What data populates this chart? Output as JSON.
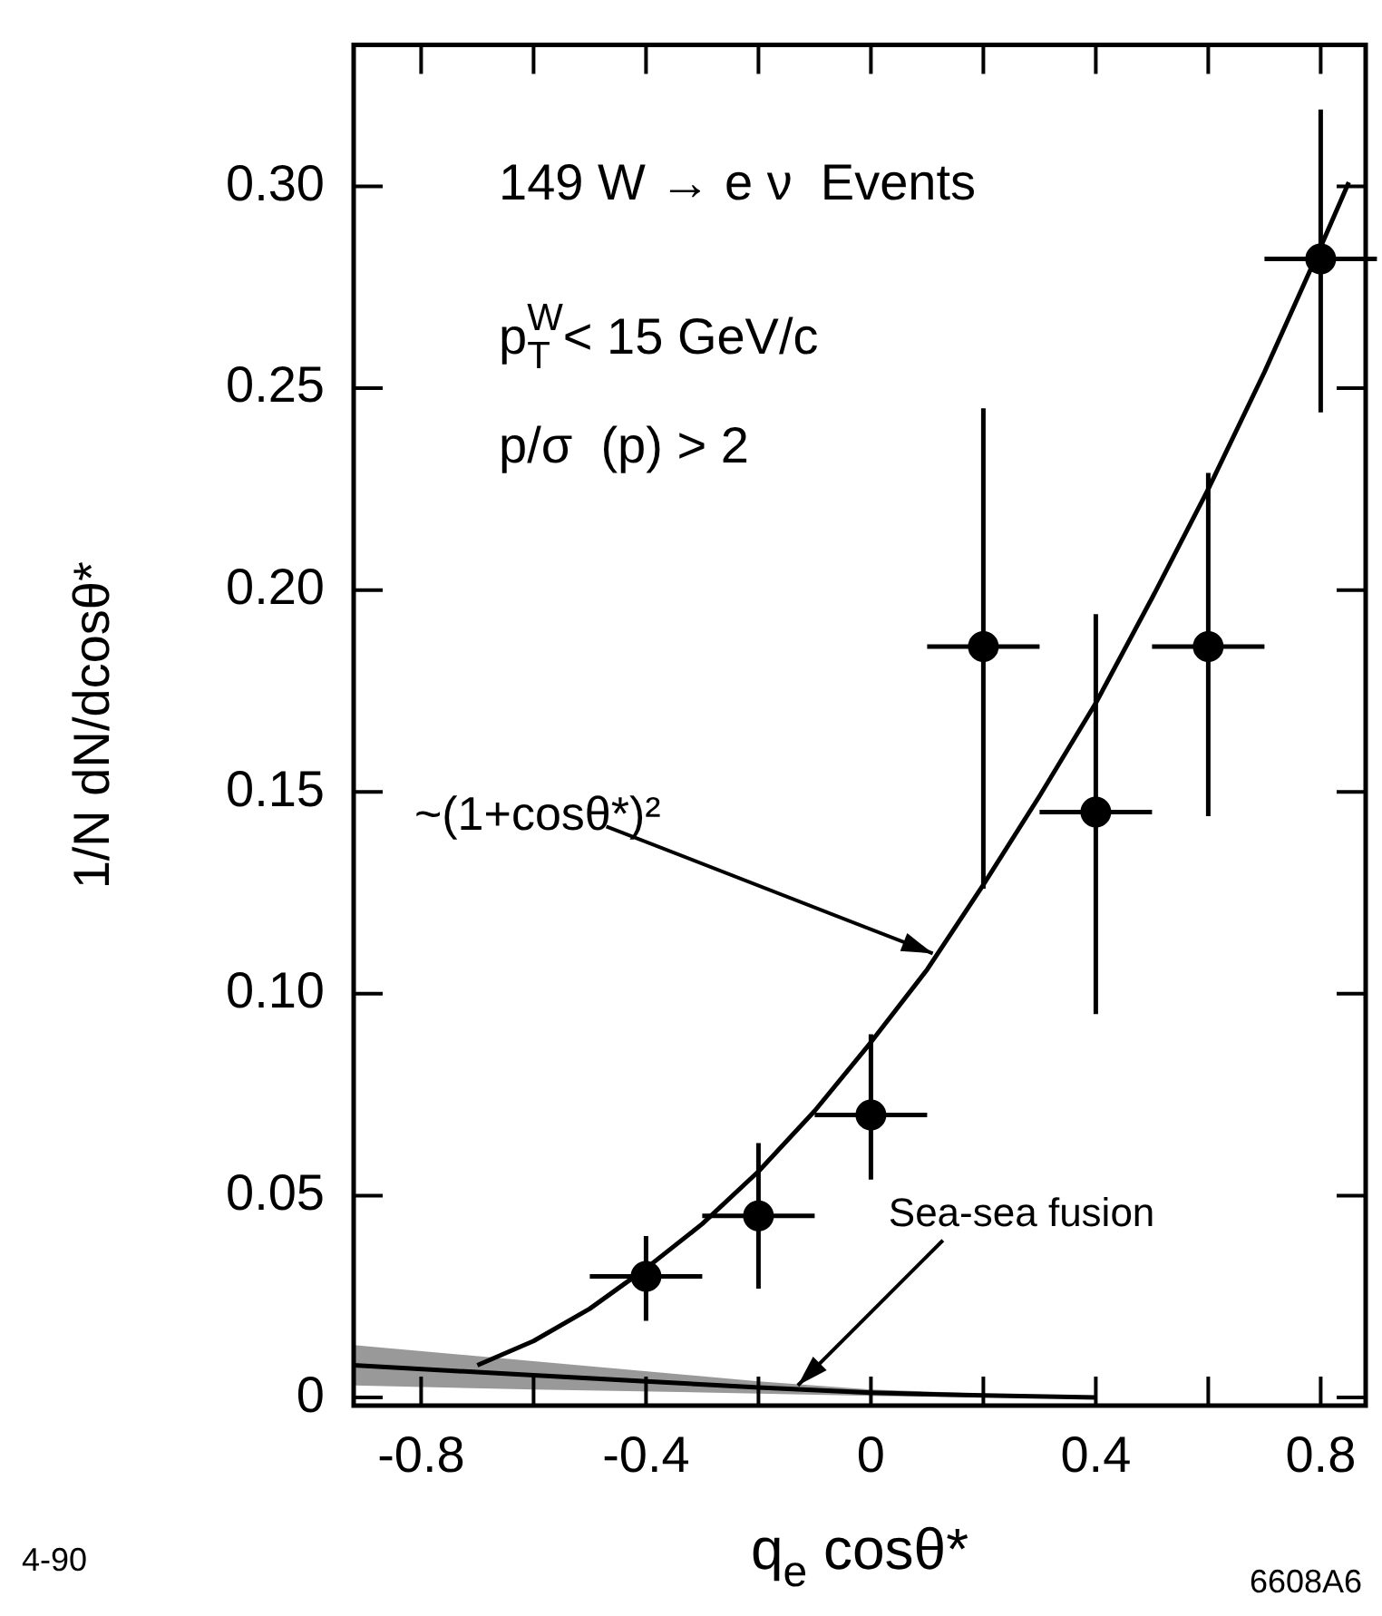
{
  "chart_data": {
    "type": "scatter",
    "xlabel": "q$_{e}$ cosθ*",
    "ylabel": "1/N dN/dcosθ*",
    "xlim": [
      -0.92,
      0.88
    ],
    "ylim": [
      -0.002,
      0.335
    ],
    "xticks": [
      -0.8,
      {
        "value": -0.6,
        "label": null
      },
      -0.4,
      {
        "value": -0.2,
        "label": null
      },
      0,
      {
        "value": 0.2,
        "label": null
      },
      0.4,
      {
        "value": 0.6,
        "label": null
      },
      0.8
    ],
    "yticks": [
      0,
      {
        "value": 0.05,
        "label": "0.05"
      },
      {
        "value": 0.1,
        "label": "0.10"
      },
      {
        "value": 0.15,
        "label": "0.15"
      },
      {
        "value": 0.2,
        "label": "0.20"
      },
      {
        "value": 0.25,
        "label": "0.25"
      },
      {
        "value": 0.3,
        "label": "0.30"
      }
    ],
    "grid": false,
    "legend": false,
    "annotations": [
      "149 W → e ν  Events",
      "p$^{W}$$_{T}$< 15 GeV/c",
      "p/σ  (p) > 2",
      "4-90",
      "6608A6",
      {
        "text": "~(1+cosθ*)²",
        "x": 0.11,
        "y": 0.11
      },
      {
        "text": "Sea-sea fusion",
        "x": -0.13,
        "y": 0.003
      }
    ],
    "series": [
      {
        "color": "#000000",
        "marker": "circle",
        "x": [
          -0.4,
          -0.2,
          0,
          0.2,
          0.4,
          0.6,
          0.8
        ],
        "values": [
          0.03,
          0.045,
          0.07,
          0.186,
          0.145,
          0.186,
          0.282
        ],
        "errors": [
          [
            0.019,
            0.04
          ],
          [
            0.027,
            0.063
          ],
          [
            0.054,
            0.09
          ],
          [
            0.126,
            0.245
          ],
          [
            0.095,
            0.194
          ],
          [
            0.144,
            0.229
          ],
          [
            0.244,
            0.319
          ]
        ],
        "xerrors": [
          0.1,
          0.1,
          0.1,
          0.1,
          0.1,
          0.1,
          0.1
        ]
      },
      {
        "type": "line",
        "color": "#000000",
        "marker": "none",
        "line_style": "solid",
        "x": [
          -0.7,
          -0.6,
          -0.5,
          -0.4,
          -0.3,
          -0.2,
          -0.1,
          0,
          0.1,
          0.2,
          0.3,
          0.4,
          0.5,
          0.6,
          0.7,
          0.8,
          0.85
        ],
        "values": [
          0.008,
          0.014,
          0.022,
          0.032,
          0.043,
          0.056,
          0.071,
          0.088,
          0.106,
          0.127,
          0.149,
          0.172,
          0.198,
          0.225,
          0.254,
          0.285,
          0.301
        ]
      },
      {
        "type": "line",
        "color": "#000000",
        "marker": "none",
        "line_style": "solid",
        "x": [
          -0.92,
          -0.6,
          -0.2,
          0,
          0.2,
          0.4
        ],
        "values": [
          0.008,
          0.0055,
          0.0025,
          0.0012,
          0.0005,
          0
        ],
        "lower": [
          0.003,
          0.002,
          0.001,
          0.0004,
          0,
          0
        ],
        "upper": [
          0.013,
          0.009,
          0.004,
          0.002,
          0.001,
          0
        ]
      }
    ]
  }
}
